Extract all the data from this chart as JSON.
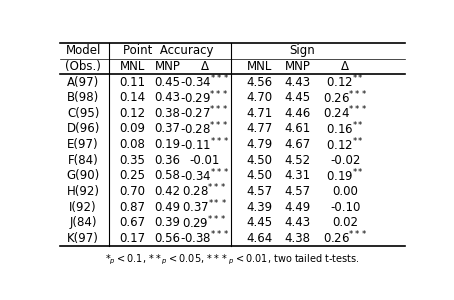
{
  "rows": [
    [
      "A(97)",
      "0.11",
      "0.45",
      "-0.34",
      "***",
      "4.56",
      "4.43",
      "0.12",
      "**"
    ],
    [
      "B(98)",
      "0.14",
      "0.43",
      "-0.29",
      "***",
      "4.70",
      "4.45",
      "0.26",
      "***"
    ],
    [
      "C(95)",
      "0.12",
      "0.38",
      "-0.27",
      "***",
      "4.71",
      "4.46",
      "0.24",
      "***"
    ],
    [
      "D(96)",
      "0.09",
      "0.37",
      "-0.28",
      "***",
      "4.77",
      "4.61",
      "0.16",
      "**"
    ],
    [
      "E(97)",
      "0.08",
      "0.19",
      "-0.11",
      "***",
      "4.79",
      "4.67",
      "0.12",
      "**"
    ],
    [
      "F(84)",
      "0.35",
      "0.36",
      "-0.01",
      "",
      "4.50",
      "4.52",
      "-0.02",
      ""
    ],
    [
      "G(90)",
      "0.25",
      "0.58",
      "-0.34",
      "***",
      "4.50",
      "4.31",
      "0.19",
      "**"
    ],
    [
      "H(92)",
      "0.70",
      "0.42",
      "0.28",
      "***",
      "4.57",
      "4.57",
      "0.00",
      ""
    ],
    [
      "I(92)",
      "0.87",
      "0.49",
      "0.37",
      "***",
      "4.39",
      "4.49",
      "-0.10",
      ""
    ],
    [
      "J(84)",
      "0.67",
      "0.39",
      "0.29",
      "***",
      "4.45",
      "4.43",
      "0.02",
      ""
    ],
    [
      "K(97)",
      "0.17",
      "0.56",
      "-0.38",
      "***",
      "4.64",
      "4.38",
      "0.26",
      "***"
    ]
  ],
  "background_color": "#ffffff",
  "text_color": "#000000",
  "font_size": 8.5
}
